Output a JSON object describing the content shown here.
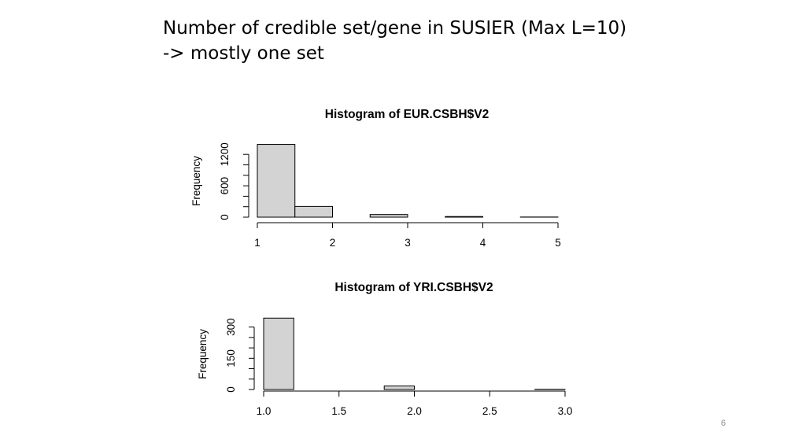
{
  "slide": {
    "title_line1": "Number of credible set/gene in SUSIER (Max L=10)",
    "title_line2": "-> mostly one set",
    "page_number": "6"
  },
  "colors": {
    "bar_fill": "#d3d3d3",
    "bar_stroke": "#000000",
    "axis": "#000000"
  },
  "chart_data": [
    {
      "type": "bar",
      "subtype": "histogram",
      "title": "Histogram of EUR.CSBH$V2",
      "xlabel": "",
      "ylabel": "Frequency",
      "xlim": [
        1,
        5
      ],
      "ylim": [
        0,
        1400
      ],
      "xticks": [
        "1",
        "2",
        "3",
        "4",
        "5"
      ],
      "yticks": [
        "0",
        "600",
        "1200"
      ],
      "bins": [
        [
          1.0,
          1.5
        ],
        [
          1.5,
          2.0
        ],
        [
          2.0,
          2.5
        ],
        [
          2.5,
          3.0
        ],
        [
          3.0,
          3.5
        ],
        [
          3.5,
          4.0
        ],
        [
          4.0,
          4.5
        ],
        [
          4.5,
          5.0
        ]
      ],
      "values": [
        1390,
        205,
        0,
        50,
        0,
        12,
        0,
        3
      ],
      "grid": false,
      "legend": "none"
    },
    {
      "type": "bar",
      "subtype": "histogram",
      "title": "Histogram of YRI.CSBH$V2",
      "xlabel": "",
      "ylabel": "Frequency",
      "xlim": [
        1.0,
        3.0
      ],
      "ylim": [
        0,
        370
      ],
      "xticks": [
        "1.0",
        "1.5",
        "2.0",
        "2.5",
        "3.0"
      ],
      "yticks": [
        "0",
        "150",
        "300"
      ],
      "bins": [
        [
          1.0,
          1.2
        ],
        [
          1.2,
          1.4
        ],
        [
          1.4,
          1.6
        ],
        [
          1.6,
          1.8
        ],
        [
          1.8,
          2.0
        ],
        [
          2.0,
          2.2
        ],
        [
          2.2,
          2.4
        ],
        [
          2.4,
          2.6
        ],
        [
          2.6,
          2.8
        ],
        [
          2.8,
          3.0
        ]
      ],
      "values": [
        343,
        0,
        0,
        0,
        17,
        0,
        0,
        0,
        0,
        1
      ],
      "grid": false,
      "legend": "none"
    }
  ]
}
